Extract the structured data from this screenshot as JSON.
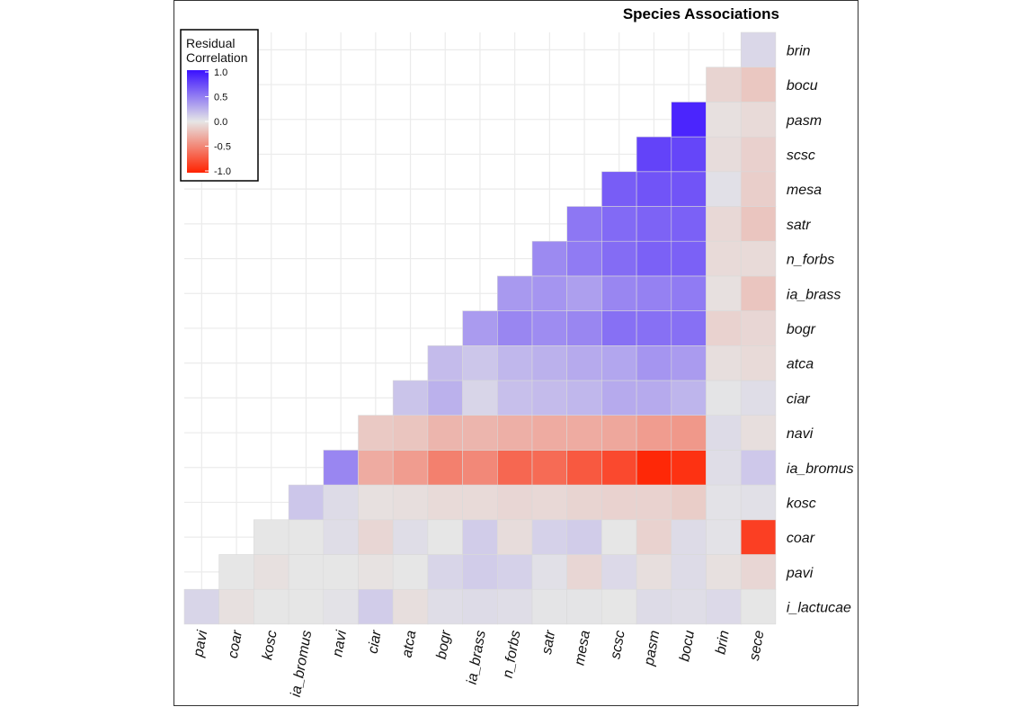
{
  "chart_data": {
    "type": "heatmap",
    "title": "Species Associations",
    "legend": {
      "title_lines": [
        "Residual",
        "Correlation"
      ],
      "ticks": [
        "1.0",
        "0.5",
        "0.0",
        "-0.5",
        "-1.0"
      ],
      "placement": "top-left",
      "low_color": "#ff2200",
      "mid_color": "#e6e6e6",
      "high_color": "#3a10ff"
    },
    "x_labels": [
      "pavi",
      "coar",
      "kosc",
      "ia_bromus",
      "navi",
      "ciar",
      "atca",
      "bogr",
      "ia_brass",
      "n_forbs",
      "satr",
      "mesa",
      "scsc",
      "pasm",
      "bocu",
      "brin",
      "sece"
    ],
    "y_labels": [
      "i_lactucae",
      "pavi",
      "coar",
      "kosc",
      "ia_bromus",
      "navi",
      "ciar",
      "atca",
      "bogr",
      "ia_brass",
      "n_forbs",
      "satr",
      "mesa",
      "scsc",
      "pasm",
      "bocu",
      "brin"
    ],
    "values": [
      [
        0.08,
        -0.03,
        0.0,
        0.0,
        0.02,
        0.12,
        -0.04,
        0.04,
        0.05,
        0.04,
        0.01,
        0.01,
        0.0,
        0.05,
        0.04,
        0.06,
        0.0
      ],
      [
        null,
        0.0,
        -0.03,
        0.0,
        0.0,
        -0.02,
        0.0,
        0.08,
        0.12,
        0.1,
        0.03,
        -0.08,
        0.06,
        -0.04,
        0.05,
        -0.03,
        -0.08
      ],
      [
        null,
        null,
        0.0,
        0.0,
        0.04,
        -0.08,
        0.04,
        0.0,
        0.12,
        -0.05,
        0.1,
        0.12,
        0.0,
        -0.1,
        0.05,
        0.02,
        -0.85
      ],
      [
        null,
        null,
        null,
        0.15,
        0.05,
        -0.03,
        -0.04,
        -0.06,
        -0.06,
        -0.08,
        -0.07,
        -0.09,
        -0.1,
        -0.1,
        -0.13,
        0.02,
        0.03
      ],
      [
        null,
        null,
        null,
        null,
        0.45,
        -0.3,
        -0.38,
        -0.52,
        -0.48,
        -0.65,
        -0.63,
        -0.72,
        -0.8,
        -0.97,
        -0.92,
        0.04,
        0.14
      ],
      [
        null,
        null,
        null,
        null,
        null,
        -0.15,
        -0.17,
        -0.25,
        -0.25,
        -0.28,
        -0.3,
        -0.3,
        -0.32,
        -0.38,
        -0.4,
        0.05,
        -0.04
      ],
      [
        null,
        null,
        null,
        null,
        null,
        null,
        0.16,
        0.25,
        0.08,
        0.18,
        0.2,
        0.22,
        0.28,
        0.28,
        0.23,
        0.01,
        0.04
      ],
      [
        null,
        null,
        null,
        null,
        null,
        null,
        null,
        0.2,
        0.15,
        0.22,
        0.25,
        0.28,
        0.3,
        0.38,
        0.35,
        -0.04,
        -0.06
      ],
      [
        null,
        null,
        null,
        null,
        null,
        null,
        null,
        null,
        0.35,
        0.45,
        0.42,
        0.45,
        0.55,
        0.55,
        0.55,
        -0.1,
        -0.08
      ],
      [
        null,
        null,
        null,
        null,
        null,
        null,
        null,
        null,
        null,
        0.36,
        0.38,
        0.33,
        0.45,
        0.47,
        0.5,
        -0.03,
        -0.17
      ],
      [
        null,
        null,
        null,
        null,
        null,
        null,
        null,
        null,
        null,
        null,
        0.43,
        0.5,
        0.57,
        0.62,
        0.62,
        -0.06,
        -0.06
      ],
      [
        null,
        null,
        null,
        null,
        null,
        null,
        null,
        null,
        null,
        null,
        null,
        0.52,
        0.58,
        0.61,
        0.62,
        -0.07,
        -0.17
      ],
      [
        null,
        null,
        null,
        null,
        null,
        null,
        null,
        null,
        null,
        null,
        null,
        null,
        0.64,
        0.68,
        0.68,
        0.03,
        -0.12
      ],
      [
        null,
        null,
        null,
        null,
        null,
        null,
        null,
        null,
        null,
        null,
        null,
        null,
        null,
        0.76,
        0.75,
        -0.05,
        -0.11
      ],
      [
        null,
        null,
        null,
        null,
        null,
        null,
        null,
        null,
        null,
        null,
        null,
        null,
        null,
        null,
        0.9,
        -0.03,
        -0.06
      ],
      [
        null,
        null,
        null,
        null,
        null,
        null,
        null,
        null,
        null,
        null,
        null,
        null,
        null,
        null,
        null,
        -0.09,
        -0.16
      ],
      [
        null,
        null,
        null,
        null,
        null,
        null,
        null,
        null,
        null,
        null,
        null,
        null,
        null,
        null,
        null,
        null,
        0.07
      ]
    ],
    "grid": true
  }
}
